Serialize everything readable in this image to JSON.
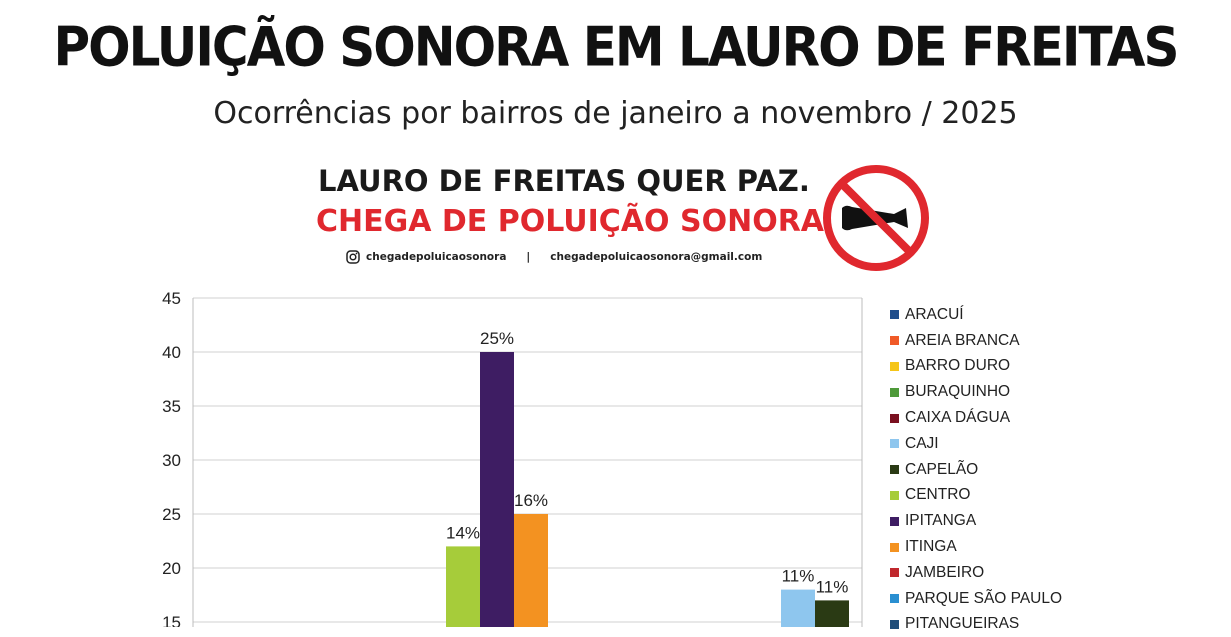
{
  "header": {
    "title": "POLUIÇÃO SONORA EM LAURO DE FREITAS",
    "subtitle": "Ocorrências por bairros de janeiro a novembro / 2025"
  },
  "banner": {
    "line1": "LAURO DE FREITAS QUER PAZ.",
    "line2": "CHEGA DE POLUIÇÃO SONORA.",
    "instagram": "chegadepoluicaosonora",
    "separator": "|",
    "email": "chegadepoluicaosonora@gmail.com"
  },
  "icons": {
    "instagram": "instagram-icon",
    "no_horn": "no-horn-icon"
  },
  "chart_data": {
    "type": "bar",
    "ylim": [
      0,
      45
    ],
    "yticks": [
      15,
      20,
      25,
      30,
      35,
      40,
      45
    ],
    "grid": true,
    "legend_position": "right",
    "series": [
      {
        "name": "ARACUÍ",
        "color": "#1f4e8c"
      },
      {
        "name": "AREIA BRANCA",
        "color": "#f05a28"
      },
      {
        "name": "BARRO DURO",
        "color": "#f5c518"
      },
      {
        "name": "BURAQUINHO",
        "color": "#4e9a3a"
      },
      {
        "name": "CAIXA DÁGUA",
        "color": "#7a1020"
      },
      {
        "name": "CAJI",
        "color": "#8ec6ee"
      },
      {
        "name": "CAPELÃO",
        "color": "#2a3a14"
      },
      {
        "name": "CENTRO",
        "color": "#a6cc3a"
      },
      {
        "name": "IPITANGA",
        "color": "#3e1d63"
      },
      {
        "name": "ITINGA",
        "color": "#f39221"
      },
      {
        "name": "JAMBEIRO",
        "color": "#c0282d"
      },
      {
        "name": "PARQUE SÃO PAULO",
        "color": "#2a8fd1"
      },
      {
        "name": "PITANGUEIRAS",
        "color": "#1f4e7a"
      }
    ],
    "bars": [
      {
        "series": "CENTRO",
        "value": 22,
        "label": "14%"
      },
      {
        "series": "IPITANGA",
        "value": 40,
        "label": "25%"
      },
      {
        "series": "ITINGA",
        "value": 25,
        "label": "16%"
      },
      {
        "series": "CAJI",
        "value": 18,
        "label": "11%"
      },
      {
        "series": "CAPELÃO",
        "value": 17,
        "label": "11%"
      }
    ]
  }
}
